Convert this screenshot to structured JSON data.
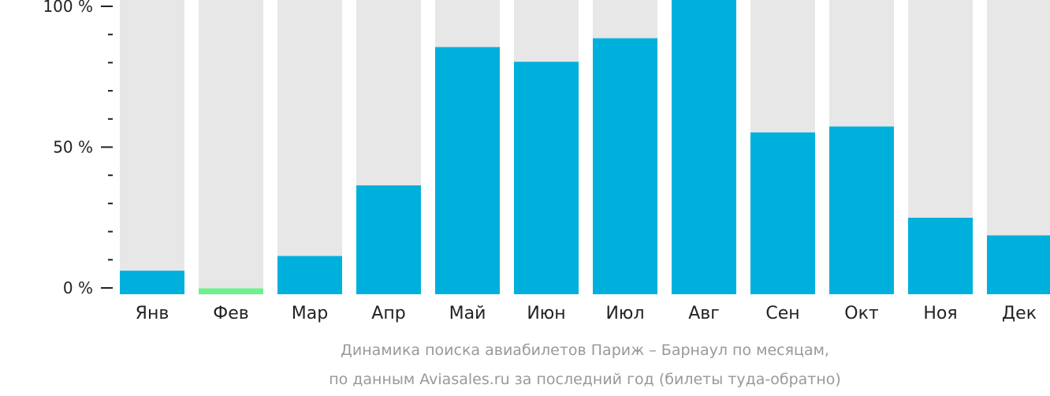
{
  "chart_data": {
    "type": "bar",
    "title": "Динамика поиска авиабилетов Париж – Барнаул по месяцам,",
    "subtitle": "по данным Aviasales.ru за последний год (билеты туда-обратно)",
    "xlabel": "",
    "ylabel": "",
    "ylim": [
      0,
      100
    ],
    "yticks": [
      "0 %",
      "50 %",
      "100 %"
    ],
    "categories": [
      "Янв",
      "Фев",
      "Мар",
      "Апр",
      "Май",
      "Июн",
      "Июл",
      "Авг",
      "Сен",
      "Окт",
      "Ноя",
      "Дек"
    ],
    "values": [
      8,
      2,
      13,
      37,
      84,
      79,
      87,
      100,
      55,
      57,
      26,
      20
    ],
    "highlight_index": 1,
    "colors": {
      "bar": "#00b0dc",
      "highlight": "#6cf28a",
      "track": "#e7e7e8",
      "axis": "#222222",
      "caption": "#999999"
    }
  }
}
